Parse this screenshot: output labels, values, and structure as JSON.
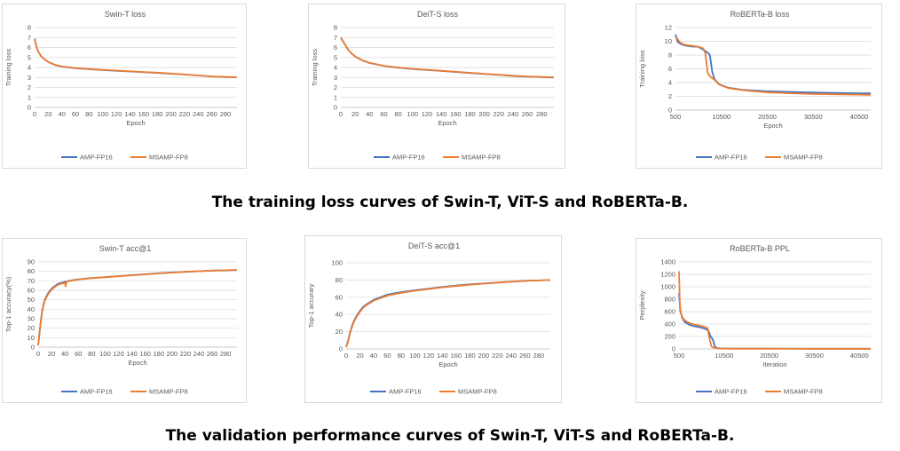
{
  "captions": {
    "training": "The training loss curves of Swin-T, ViT-S and RoBERTa-B.",
    "validation": "The validation performance curves of Swin-T, ViT-S and RoBERTa-B."
  },
  "colors": {
    "amp": "#4472c4",
    "msamp": "#ed7d31",
    "grid": "#d9d9d9",
    "text": "#595959"
  },
  "legend": [
    "AMP-FP16",
    "MSAMP-FP8"
  ],
  "chart_data": [
    {
      "type": "line",
      "title": "Swin-T loss",
      "xlabel": "Epoch",
      "ylabel": "Training loss",
      "xlim": [
        0,
        297
      ],
      "ylim": [
        0,
        8
      ],
      "xticks": [
        0,
        20,
        40,
        60,
        80,
        100,
        120,
        140,
        160,
        180,
        200,
        220,
        240,
        260,
        280
      ],
      "yticks": [
        0,
        1,
        2,
        3,
        4,
        5,
        6,
        7,
        8
      ],
      "grid": true,
      "legend_position": "bottom",
      "series": [
        {
          "name": "AMP-FP16",
          "x": [
            0,
            3,
            6,
            10,
            15,
            20,
            30,
            40,
            60,
            80,
            100,
            120,
            140,
            160,
            180,
            200,
            220,
            240,
            260,
            280,
            297
          ],
          "y": [
            6.9,
            6.0,
            5.5,
            5.1,
            4.8,
            4.55,
            4.25,
            4.08,
            3.92,
            3.82,
            3.74,
            3.67,
            3.6,
            3.53,
            3.46,
            3.38,
            3.3,
            3.2,
            3.1,
            3.04,
            3.02
          ]
        },
        {
          "name": "MSAMP-FP8",
          "x": [
            0,
            3,
            6,
            10,
            15,
            20,
            30,
            40,
            60,
            80,
            100,
            120,
            140,
            160,
            180,
            200,
            220,
            240,
            260,
            280,
            297
          ],
          "y": [
            6.85,
            6.0,
            5.5,
            5.1,
            4.8,
            4.55,
            4.27,
            4.1,
            3.95,
            3.85,
            3.77,
            3.7,
            3.62,
            3.55,
            3.48,
            3.4,
            3.3,
            3.2,
            3.1,
            3.05,
            3.03
          ]
        }
      ]
    },
    {
      "type": "line",
      "title": "DeiT-S loss",
      "xlabel": "Epoch",
      "ylabel": "Training loss",
      "xlim": [
        0,
        297
      ],
      "ylim": [
        0,
        8
      ],
      "xticks": [
        0,
        20,
        40,
        60,
        80,
        100,
        120,
        140,
        160,
        180,
        200,
        220,
        240,
        260,
        280
      ],
      "yticks": [
        0,
        1,
        2,
        3,
        4,
        5,
        6,
        7,
        8
      ],
      "grid": true,
      "legend_position": "bottom",
      "series": [
        {
          "name": "AMP-FP16",
          "x": [
            0,
            5,
            10,
            15,
            20,
            30,
            40,
            60,
            80,
            100,
            120,
            140,
            160,
            180,
            200,
            220,
            240,
            260,
            280,
            297
          ],
          "y": [
            7.0,
            6.4,
            5.8,
            5.4,
            5.1,
            4.7,
            4.45,
            4.15,
            3.98,
            3.85,
            3.75,
            3.65,
            3.55,
            3.45,
            3.35,
            3.25,
            3.15,
            3.08,
            3.03,
            3.0
          ]
        },
        {
          "name": "MSAMP-FP8",
          "x": [
            0,
            5,
            10,
            15,
            20,
            30,
            40,
            60,
            80,
            100,
            120,
            140,
            160,
            180,
            200,
            220,
            240,
            260,
            280,
            297
          ],
          "y": [
            6.95,
            6.4,
            5.8,
            5.4,
            5.1,
            4.72,
            4.47,
            4.17,
            4.0,
            3.87,
            3.77,
            3.67,
            3.57,
            3.47,
            3.37,
            3.27,
            3.17,
            3.1,
            3.05,
            3.02
          ]
        }
      ]
    },
    {
      "type": "line",
      "title": "RoBERTa-B loss",
      "xlabel": "Epoch",
      "ylabel": "Training loss",
      "xlim": [
        500,
        43000
      ],
      "ylim": [
        0,
        12
      ],
      "xticks": [
        500,
        10500,
        20500,
        30500,
        40500
      ],
      "yticks": [
        0,
        2,
        4,
        6,
        8,
        10,
        12
      ],
      "grid": true,
      "legend_position": "bottom",
      "series": [
        {
          "name": "AMP-FP16",
          "x": [
            500,
            1000,
            1500,
            2500,
            4000,
            5500,
            7000,
            7600,
            8000,
            8500,
            9000,
            10000,
            12000,
            15000,
            20000,
            25000,
            30000,
            35000,
            40000,
            43000
          ],
          "y": [
            11.0,
            9.9,
            9.65,
            9.4,
            9.25,
            9.2,
            8.6,
            8.3,
            8.0,
            5.6,
            4.5,
            3.75,
            3.25,
            2.95,
            2.75,
            2.65,
            2.55,
            2.5,
            2.45,
            2.42
          ]
        },
        {
          "name": "MSAMP-FP8",
          "x": [
            500,
            1000,
            1500,
            2500,
            4000,
            5500,
            6500,
            7000,
            7500,
            8000,
            9000,
            10000,
            12000,
            15000,
            20000,
            25000,
            30000,
            35000,
            40000,
            43000
          ],
          "y": [
            10.6,
            10.3,
            9.8,
            9.5,
            9.35,
            9.2,
            9.0,
            8.3,
            5.5,
            4.9,
            4.4,
            3.7,
            3.2,
            2.9,
            2.6,
            2.45,
            2.35,
            2.3,
            2.25,
            2.22
          ]
        }
      ]
    },
    {
      "type": "line",
      "title": "Swin-T acc@1",
      "xlabel": "Epoch",
      "ylabel": "Top-1 accuracy(%)",
      "xlim": [
        0,
        297
      ],
      "ylim": [
        0,
        90
      ],
      "xticks": [
        0,
        20,
        40,
        60,
        80,
        100,
        120,
        140,
        160,
        180,
        200,
        220,
        240,
        260,
        280
      ],
      "yticks": [
        0,
        10,
        20,
        30,
        40,
        50,
        60,
        70,
        80,
        90
      ],
      "grid": true,
      "legend_position": "bottom",
      "series": [
        {
          "name": "AMP-FP16",
          "x": [
            0,
            2,
            4,
            6,
            8,
            10,
            14,
            18,
            22,
            26,
            30,
            35,
            40,
            50,
            60,
            80,
            100,
            120,
            140,
            160,
            180,
            200,
            220,
            240,
            260,
            280,
            297
          ],
          "y": [
            2,
            15,
            28,
            38,
            45,
            50,
            56,
            60,
            63,
            65,
            67,
            68,
            69,
            70.5,
            71.5,
            73,
            74,
            75,
            76,
            77,
            78,
            78.8,
            79.5,
            80.2,
            80.8,
            81.2,
            81.5
          ]
        },
        {
          "name": "MSAMP-FP8",
          "x": [
            0,
            2,
            4,
            6,
            8,
            10,
            14,
            18,
            22,
            26,
            30,
            35,
            40,
            41,
            42,
            50,
            60,
            80,
            100,
            120,
            140,
            160,
            180,
            200,
            220,
            240,
            260,
            280,
            297
          ],
          "y": [
            2,
            14,
            27,
            37,
            44,
            49,
            55,
            59,
            62,
            64,
            66,
            67,
            68,
            64,
            69,
            70.2,
            71.3,
            72.8,
            73.8,
            74.8,
            75.8,
            76.8,
            77.8,
            78.7,
            79.5,
            80.2,
            80.8,
            81.2,
            81.5
          ]
        }
      ]
    },
    {
      "type": "line",
      "title": "DeiT-S acc@1",
      "xlabel": "Epoch",
      "ylabel": "Top-1 accurary",
      "xlim": [
        0,
        297
      ],
      "ylim": [
        0,
        100
      ],
      "xticks": [
        0,
        20,
        40,
        60,
        80,
        100,
        120,
        140,
        160,
        180,
        200,
        220,
        240,
        260,
        280
      ],
      "yticks": [
        0,
        20,
        40,
        60,
        80,
        100
      ],
      "grid": true,
      "legend_position": "bottom",
      "series": [
        {
          "name": "AMP-FP16",
          "x": [
            0,
            3,
            6,
            10,
            15,
            20,
            25,
            30,
            40,
            50,
            60,
            80,
            100,
            120,
            140,
            160,
            180,
            200,
            220,
            240,
            260,
            280,
            297
          ],
          "y": [
            2,
            10,
            20,
            30,
            38,
            44,
            49,
            52,
            57,
            60,
            63,
            66,
            68,
            70,
            72,
            73.5,
            75,
            76,
            77,
            78,
            79,
            79.5,
            80
          ]
        },
        {
          "name": "MSAMP-FP8",
          "x": [
            0,
            3,
            6,
            10,
            15,
            20,
            25,
            30,
            40,
            50,
            60,
            80,
            100,
            120,
            140,
            160,
            180,
            200,
            220,
            240,
            260,
            280,
            297
          ],
          "y": [
            2,
            9,
            19,
            29,
            37,
            43,
            48,
            51,
            56,
            59,
            62,
            65,
            67.5,
            69.5,
            71.5,
            73,
            74.5,
            75.8,
            77,
            78,
            79,
            79.5,
            80
          ]
        }
      ]
    },
    {
      "type": "line",
      "title": "RoBERTa-B PPL",
      "xlabel": "Iteration",
      "ylabel": "Perplexity",
      "xlim": [
        500,
        43000
      ],
      "ylim": [
        0,
        1400
      ],
      "xticks": [
        500,
        10500,
        20500,
        30500,
        40500
      ],
      "yticks": [
        0,
        200,
        400,
        600,
        800,
        1000,
        1200,
        1400
      ],
      "grid": true,
      "legend_position": "bottom",
      "series": [
        {
          "name": "AMP-FP16",
          "x": [
            500,
            800,
            1200,
            1800,
            2500,
            3500,
            5000,
            6000,
            7000,
            7500,
            8000,
            8500,
            9000,
            10000,
            12000,
            20000,
            30000,
            43000
          ],
          "y": [
            900,
            600,
            500,
            430,
            400,
            370,
            350,
            330,
            300,
            200,
            150,
            30,
            15,
            8,
            5,
            4,
            3,
            3
          ]
        },
        {
          "name": "MSAMP-FP8",
          "x": [
            500,
            700,
            1000,
            1500,
            2200,
            3000,
            4000,
            5000,
            6000,
            6800,
            7300,
            7700,
            8200,
            9000,
            10000,
            12000,
            20000,
            30000,
            43000
          ],
          "y": [
            1250,
            700,
            550,
            480,
            440,
            410,
            390,
            375,
            360,
            340,
            150,
            40,
            20,
            10,
            6,
            5,
            4,
            3,
            3
          ]
        }
      ]
    }
  ]
}
